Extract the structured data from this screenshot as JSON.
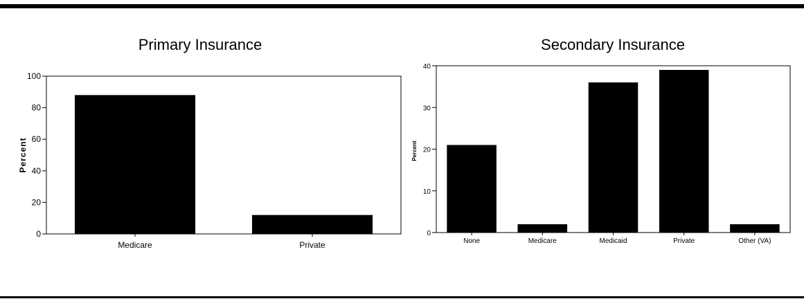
{
  "chart_data": [
    {
      "type": "bar",
      "title": "Primary Insurance",
      "xlabel": "",
      "ylabel": "Percent",
      "categories": [
        "Medicare",
        "Private"
      ],
      "values": [
        88,
        12
      ],
      "ylim": [
        0,
        100
      ],
      "yticks": [
        0,
        20,
        40,
        60,
        80,
        100
      ],
      "bar_color": "#000000",
      "grid": false
    },
    {
      "type": "bar",
      "title": "Secondary Insurance",
      "xlabel": "",
      "ylabel": "Percent",
      "categories": [
        "None",
        "Medicare",
        "Medicaid",
        "Private",
        "Other (VA)"
      ],
      "values": [
        21,
        2,
        36,
        39,
        2
      ],
      "ylim": [
        0,
        40
      ],
      "yticks": [
        0,
        10,
        20,
        30,
        40
      ],
      "bar_color": "#000000",
      "grid": false
    }
  ]
}
